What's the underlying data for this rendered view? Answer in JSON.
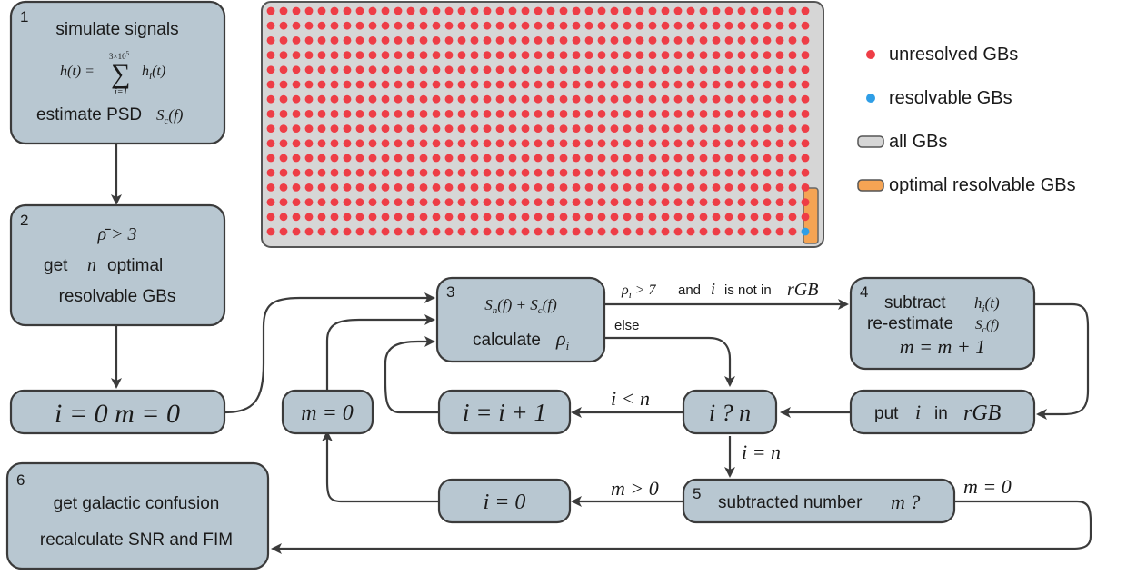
{
  "boxes": {
    "b1": {
      "num": "1",
      "line1": "simulate signals",
      "eq_lhs": "h(t) = ",
      "sum_top": "3×10",
      "sum_top_exp": "5",
      "sum_sym": "∑",
      "sum_bottom": "i=1",
      "eq_rhs": "h",
      "eq_rhs_sub": "i",
      "eq_rhs_tail": "(t)",
      "line3": "estimate PSD",
      "line3_math": "S",
      "line3_math_sub": "c",
      "line3_math_tail": "(f)"
    },
    "b2": {
      "num": "2",
      "cond": "ρ̄ > 3",
      "line2a": "get",
      "line2_math": "n",
      "line2b": "optimal",
      "line3": "resolvable GBs"
    },
    "b_init": {
      "text": "i = 0   m = 0"
    },
    "b_m0": {
      "text": "m = 0"
    },
    "b3": {
      "num": "3",
      "eq": "S",
      "eq_sub1": "n",
      "eq_mid": "(f) + S",
      "eq_sub2": "c",
      "eq_end": "(f)",
      "line2": "calculate",
      "line2_math": "ρ",
      "line2_sub": "i"
    },
    "b4": {
      "num": "4",
      "line1": "subtract",
      "line1_math": "h",
      "line1_sub": "i",
      "line1_tail": "(t)",
      "line2": "re-estimate",
      "line2_math": "S",
      "line2_sub": "c",
      "line2_tail": "(f)",
      "line3": "m = m + 1"
    },
    "b_inc": {
      "text": "i = i + 1"
    },
    "b_cmp": {
      "text": "i ? n"
    },
    "b_put": {
      "pre": "put",
      "math": "i",
      "mid": "in",
      "math2": "rGB"
    },
    "b_i0": {
      "text": "i = 0"
    },
    "b5": {
      "num": "5",
      "text": "subtracted number",
      "math": "m ?"
    },
    "b6": {
      "num": "6",
      "line1": "get galactic confusion",
      "line2": "recalculate SNR and FIM"
    }
  },
  "edges": {
    "e_3_4": {
      "pre": "ρ",
      "pre_sub": "i",
      "pre_tail": " > 7",
      "and": "and",
      "math": "i",
      "mid": "is not in",
      "math2": "rGB"
    },
    "e_else": "else",
    "e_lt": "i < n",
    "e_eq": "i = n",
    "e_gt": "m > 0",
    "e_m0": "m = 0"
  },
  "grid": {
    "rows": 16,
    "cols": 43,
    "unresolved_color": "#ee3d46",
    "resolvable_color": "#2f9ee6",
    "frame_fill": "#d6d6d6",
    "highlight_fill": "#f5a454"
  },
  "legend": [
    {
      "label": "unresolved GBs",
      "swatch": "dot",
      "color": "#ee3d46"
    },
    {
      "label": "resolvable GBs",
      "swatch": "dot",
      "color": "#2f9ee6"
    },
    {
      "label": "all GBs",
      "swatch": "rect",
      "color": "#d6d6d6"
    },
    {
      "label": "optimal resolvable GBs",
      "swatch": "rect",
      "color": "#f5a454"
    }
  ]
}
